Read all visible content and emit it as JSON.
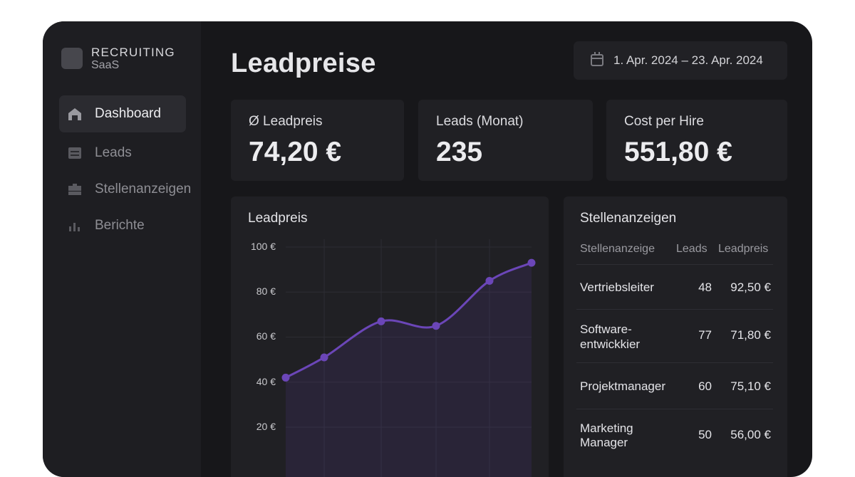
{
  "sidebar": {
    "brand_line1": "RECRUITING",
    "brand_line2": "SaaS",
    "items": [
      {
        "label": "Dashboard",
        "icon": "home-icon",
        "active": true
      },
      {
        "label": "Leads",
        "icon": "list-icon",
        "active": false
      },
      {
        "label": "Stellenanzeigen",
        "icon": "briefcase-icon",
        "active": false
      },
      {
        "label": "Berichte",
        "icon": "bar-chart-icon",
        "active": false
      }
    ]
  },
  "header": {
    "title": "Leadpreise",
    "date_range": "1. Apr. 2024 – 23. Apr. 2024"
  },
  "kpis": [
    {
      "label": "Ø Leadpreis",
      "value": "74,20 €"
    },
    {
      "label": "Leads (Monat)",
      "value": "235"
    },
    {
      "label": "Cost per Hire",
      "value": "551,80 €"
    }
  ],
  "chart_data": {
    "type": "area",
    "title": "Leadpreis",
    "y_ticks": [
      "100 €",
      "80 €",
      "60 €",
      "40 €",
      "20 €"
    ],
    "ylim": [
      0,
      100
    ],
    "x": [
      1,
      2,
      3,
      4,
      5,
      6
    ],
    "values": [
      42,
      51,
      67,
      65,
      85,
      93
    ],
    "grid": true,
    "color": "#6b46b8"
  },
  "table": {
    "title": "Stellenanzeigen",
    "headers": [
      "Stellenanzeige",
      "Leads",
      "Leadpreis"
    ],
    "rows": [
      {
        "name_line1": "Vertriebsleiter",
        "name_line2": "",
        "leads": "48",
        "price": "92,50 €"
      },
      {
        "name_line1": "Software-",
        "name_line2": "entwickkier",
        "leads": "77",
        "price": "71,80 €"
      },
      {
        "name_line1": "Projektmanager",
        "name_line2": "",
        "leads": "60",
        "price": "75,10 €"
      },
      {
        "name_line1": "Marketing",
        "name_line2": "Manager",
        "leads": "50",
        "price": "56,00 €"
      }
    ]
  }
}
